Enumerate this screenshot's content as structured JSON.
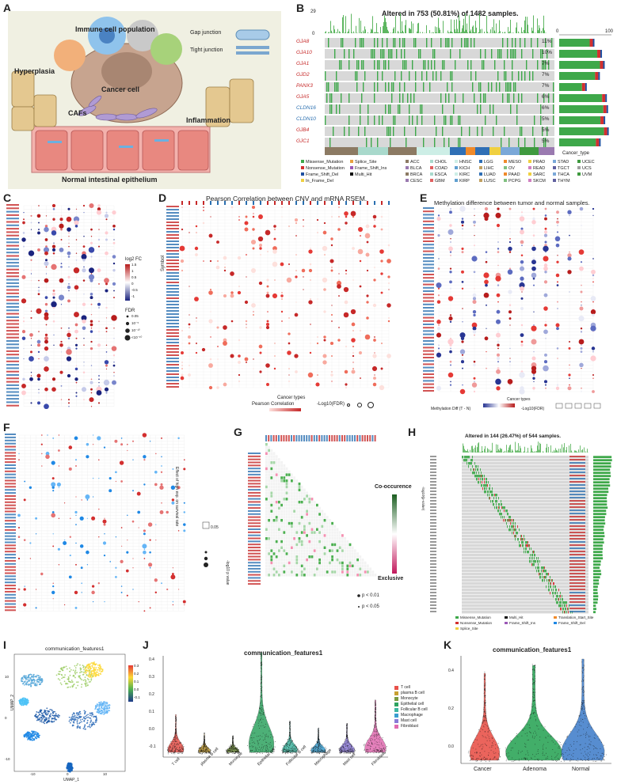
{
  "labels": [
    "A",
    "B",
    "C",
    "D",
    "E",
    "F",
    "G",
    "H",
    "I",
    "J",
    "K"
  ],
  "panelA": {
    "immune": "Immune cell population",
    "gap": "Gap junction",
    "tight": "Tight junction",
    "hyper": "Hyperplasia",
    "cancer": "Cancer cell",
    "cafs": "CAFs",
    "inflam": "Inflammation",
    "normal": "Normal intestinal epithelium"
  },
  "panelB": {
    "title": "Altered in 753 (50.81%) of 1482 samples.",
    "ytop": "29",
    "yzero": "0",
    "rtop0": "0",
    "rtop100": "100",
    "genes": [
      "GJA8",
      "GJA10",
      "GJA1",
      "GJD2",
      "PANX3",
      "GJA5",
      "CLDN16",
      "CLDN10",
      "GJB4",
      "GJC1"
    ],
    "pcts": [
      "11%",
      "10%",
      "7%",
      "7%",
      "7%",
      "6%",
      "6%",
      "5%",
      "5%",
      "5%"
    ],
    "cancer_type_label": "Cancer_type",
    "mut_legend": [
      "Missense_Mutation",
      "Splice_Site",
      "Nonsense_Mutation",
      "Frame_Shift_Ins",
      "Frame_Shift_Del",
      "Multi_Hit",
      "In_Frame_Del"
    ],
    "cancer_legend_title": "Cancer_type",
    "cancer_types": [
      "ACC",
      "CHOL",
      "HNSC",
      "LGG",
      "MESO",
      "PRAD",
      "STAD",
      "UCEC",
      "BLCA",
      "COAD",
      "KICH",
      "LIHC",
      "OV",
      "READ",
      "TGCT",
      "UCS",
      "BRCA",
      "ESCA",
      "KIRC",
      "LUAD",
      "PAAD",
      "SARC",
      "THCA",
      "UVM",
      "CESC",
      "GBM",
      "KIRP",
      "LUSC",
      "PCPG",
      "SKCM",
      "THYM"
    ]
  },
  "panelC": {
    "log2fc": "log2 FC",
    "fdr": "FDR",
    "ticks": [
      "1.5",
      "1",
      "0.5",
      "0",
      "-0.5",
      "-1"
    ],
    "fdrticks": [
      "0.05",
      "10⁻⁵",
      "10⁻¹⁰",
      "<10⁻¹⁰"
    ]
  },
  "panelD": {
    "title": "Pearson Correlation between CNV and mRNA RSEM.",
    "ylabel": "Symbol",
    "xlabel": "Cancer types",
    "legend1": "Pearson Correlation",
    "legend2": "-Log10(FDR)",
    "l1ticks": [
      "0.25",
      "0.5",
      "0.75"
    ],
    "l2ticks": [
      "10",
      "20",
      "30"
    ]
  },
  "panelE": {
    "title": "Methylation difference between tumor and normal samples.",
    "ylabel": "Symbol",
    "xlabel": "Cancer types",
    "legend1": "Methylation Diff (T - N)",
    "legend2": "-Log10(FDR)",
    "l1ticks": [
      "-0.4",
      "-0.2",
      "0.0",
      "0.2",
      "0.4"
    ],
    "l2ticks": [
      "3",
      "5",
      "10",
      "20",
      "30"
    ]
  },
  "panelF": {
    "ylabel": "Effect of high exp. on survival rate",
    "legend_tick": "0.05",
    "hr_label": "-log10 p value",
    "hr_ticks": [
      "2.5",
      "5.0",
      "7.5"
    ]
  },
  "panelG": {
    "co": "Co-occurence",
    "ex": "Exclusive",
    "scale": [
      "4",
      "3",
      "2",
      "1",
      "0",
      "1",
      "2",
      "3"
    ],
    "p1": "p < 0.01",
    "p2": "p < 0.05"
  },
  "panelH": {
    "title": "Altered in 144 (26.47%) of 544 samples.",
    "ylabel": "-log10(p-value)",
    "legend": [
      "Missense_Mutation",
      "Multi_Hit",
      "Translation_Start_Site",
      "Nonsense_Mutation",
      "Frame_Shift_Ins",
      "Frame_Shift_Del",
      "Splice_Site"
    ]
  },
  "panelI": {
    "title": "communication_features1",
    "xlabel": "UMAP_1",
    "ylabel": "UMAP_2",
    "ticks": [
      "0.3",
      "0.2",
      "0.1",
      "0.0",
      "-0.1"
    ],
    "xticks": [
      "-10",
      "0",
      "10"
    ],
    "yticks": [
      "10",
      "0",
      "-10"
    ]
  },
  "panelJ": {
    "title": "communication_features1",
    "yticks": [
      "0.4",
      "0.3",
      "0.2",
      "0.1",
      "0.0",
      "-0.1"
    ],
    "cells": [
      "T cell",
      "plasma B cell",
      "Monocyte",
      "Epithelial cell",
      "Follicular B cell",
      "Macrophage",
      "Mast cell",
      "Fibroblast"
    ],
    "colors": [
      "#e8514a",
      "#c8a032",
      "#7a9a40",
      "#2ea360",
      "#3fb6a0",
      "#3a9ed0",
      "#8b7ad6",
      "#e06ab0"
    ],
    "heights": [
      0.16,
      0.08,
      0.07,
      0.42,
      0.13,
      0.1,
      0.12,
      0.22
    ],
    "widths": [
      0.35,
      0.2,
      0.22,
      0.7,
      0.32,
      0.3,
      0.32,
      0.55
    ]
  },
  "panelK": {
    "title": "communication_features1",
    "yticks": [
      "0.4",
      "0.2",
      "0.0"
    ],
    "groups": [
      "Cancer",
      "Adenoma",
      "Normal"
    ],
    "colors": [
      "#e84a40",
      "#22a050",
      "#3a7ac8"
    ]
  }
}
